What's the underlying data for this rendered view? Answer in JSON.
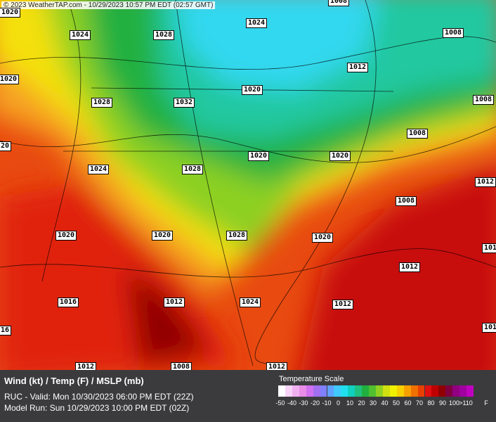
{
  "header": "© 2023 WeatherTAP.com - 10/29/2023 10:57 PM EDT (02:57 GMT)",
  "isobars": [
    "1008",
    "1020",
    "1024",
    "1028",
    "1024",
    "1008",
    "1012",
    "1020",
    "1020",
    "1028",
    "1032",
    "1008",
    "20",
    "1008",
    "1020",
    "1020",
    "1024",
    "1028",
    "1012",
    "1008",
    "1020",
    "1020",
    "1028",
    "1020",
    "101",
    "1012",
    "1016",
    "1012",
    "1024",
    "1012",
    "101",
    "16",
    "1012",
    "1008",
    "1012"
  ],
  "footer": {
    "title": "Wind (kt) / Temp (F) / MSLP (mb)",
    "valid": "RUC - Valid: Mon 10/30/2023 06:00 PM EDT (22Z)",
    "model_run": "Model Run: Sun 10/29/2023 10:00 PM EDT (02Z)"
  },
  "temperature_scale": {
    "title": "Temperature Scale",
    "labels": [
      "-50",
      "-40",
      "-30",
      "-20",
      "-10",
      "0",
      "10",
      "20",
      "30",
      "40",
      "50",
      "60",
      "70",
      "80",
      "90",
      "100",
      ">110",
      "F"
    ],
    "colors": [
      "#ffffff",
      "#f7d4f7",
      "#f0b0f0",
      "#e88ce8",
      "#d070f0",
      "#a070f0",
      "#8080ff",
      "#60a0ff",
      "#40c8ff",
      "#20e0f0",
      "#10d0c0",
      "#20c080",
      "#20b040",
      "#50c030",
      "#90d020",
      "#d0e010",
      "#f0f000",
      "#f8d000",
      "#f8a000",
      "#f07000",
      "#e84000",
      "#e01010",
      "#c00000",
      "#900000",
      "#800040",
      "#900080",
      "#a000a0",
      "#c000c0"
    ]
  }
}
